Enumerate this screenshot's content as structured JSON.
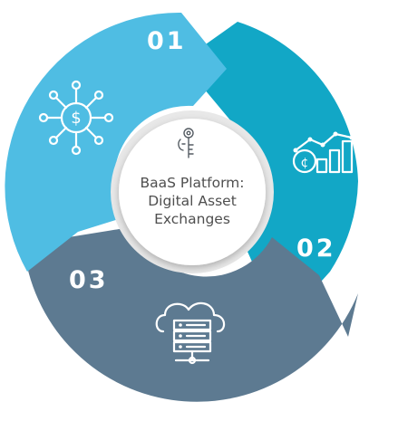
{
  "center": {
    "title_lines": [
      "BaaS Platform:",
      "Digital Asset",
      "Exchanges"
    ],
    "icon": "key-icon"
  },
  "segments": [
    {
      "number": "01",
      "icon": "dollar-network-icon",
      "color": "#4fbde3"
    },
    {
      "number": "02",
      "icon": "coin-growth-chart-icon",
      "color": "#12a7c6"
    },
    {
      "number": "03",
      "icon": "cloud-server-icon",
      "color": "#5d7a91"
    }
  ],
  "colors": {
    "ring_bg": "#ffffff",
    "center_border": "#e7e7e7",
    "center_fill": "#ffffff"
  }
}
